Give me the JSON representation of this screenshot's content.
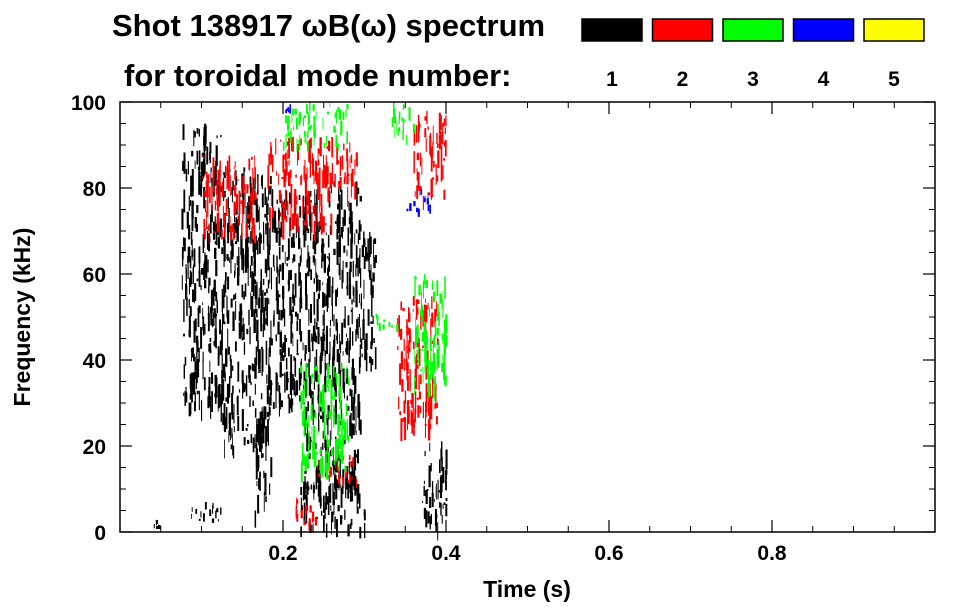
{
  "chart_data": {
    "type": "heatmap",
    "title_line1": "Shot 138917 ωB(ω) spectrum",
    "title_line2": "for toroidal mode number:",
    "xlabel": "Time (s)",
    "ylabel": "Frequency (kHz)",
    "xlim": [
      0.0,
      1.0
    ],
    "ylim": [
      0,
      100
    ],
    "xticks": [
      {
        "value": 0.2,
        "label": "0.2"
      },
      {
        "value": 0.4,
        "label": "0.4"
      },
      {
        "value": 0.6,
        "label": "0.6"
      },
      {
        "value": 0.8,
        "label": "0.8"
      }
    ],
    "yticks": [
      {
        "value": 0,
        "label": "0"
      },
      {
        "value": 20,
        "label": "20"
      },
      {
        "value": 40,
        "label": "40"
      },
      {
        "value": 60,
        "label": "60"
      },
      {
        "value": 80,
        "label": "80"
      },
      {
        "value": 100,
        "label": "100"
      }
    ],
    "legend": [
      {
        "label": "1",
        "color": "#000000"
      },
      {
        "label": "2",
        "color": "#ff0000"
      },
      {
        "label": "3",
        "color": "#00ff00"
      },
      {
        "label": "4",
        "color": "#0000ff"
      },
      {
        "label": "5",
        "color": "#ffff00"
      }
    ],
    "series": [
      {
        "mode": "1",
        "color": "#000000",
        "regions": [
          {
            "t": [
              0.075,
              0.125
            ],
            "f": [
              30,
              95
            ]
          },
          {
            "t": [
              0.125,
              0.185
            ],
            "f": [
              20,
              85
            ]
          },
          {
            "t": [
              0.165,
              0.185
            ],
            "f": [
              5,
              30
            ]
          },
          {
            "t": [
              0.185,
              0.225
            ],
            "f": [
              30,
              80
            ]
          },
          {
            "t": [
              0.225,
              0.295
            ],
            "f": [
              10,
              82
            ]
          },
          {
            "t": [
              0.295,
              0.315
            ],
            "f": [
              40,
              70
            ]
          },
          {
            "t": [
              0.22,
              0.3
            ],
            "f": [
              1,
              12
            ]
          },
          {
            "t": [
              0.37,
              0.4
            ],
            "f": [
              2,
              22
            ]
          },
          {
            "t": [
              0.085,
              0.125
            ],
            "f": [
              2,
              7
            ]
          },
          {
            "t": [
              0.04,
              0.05
            ],
            "f": [
              1,
              3
            ]
          }
        ]
      },
      {
        "mode": "2",
        "color": "#ff0000",
        "regions": [
          {
            "t": [
              0.1,
              0.17
            ],
            "f": [
              70,
              88
            ]
          },
          {
            "t": [
              0.18,
              0.26
            ],
            "f": [
              72,
              92
            ]
          },
          {
            "t": [
              0.26,
              0.29
            ],
            "f": [
              80,
              92
            ]
          },
          {
            "t": [
              0.34,
              0.39
            ],
            "f": [
              25,
              55
            ]
          },
          {
            "t": [
              0.36,
              0.4
            ],
            "f": [
              78,
              98
            ]
          },
          {
            "t": [
              0.24,
              0.29
            ],
            "f": [
              12,
              18
            ]
          },
          {
            "t": [
              0.21,
              0.24
            ],
            "f": [
              2,
              8
            ]
          }
        ]
      },
      {
        "mode": "3",
        "color": "#00ff00",
        "regions": [
          {
            "t": [
              0.2,
              0.28
            ],
            "f": [
              90,
              100
            ]
          },
          {
            "t": [
              0.31,
              0.34
            ],
            "f": [
              48,
              52
            ]
          },
          {
            "t": [
              0.36,
              0.4
            ],
            "f": [
              35,
              60
            ]
          },
          {
            "t": [
              0.22,
              0.28
            ],
            "f": [
              15,
              40
            ]
          },
          {
            "t": [
              0.33,
              0.36
            ],
            "f": [
              92,
              100
            ]
          }
        ]
      },
      {
        "mode": "4",
        "color": "#0000ff",
        "regions": [
          {
            "t": [
              0.35,
              0.38
            ],
            "f": [
              75,
              80
            ]
          },
          {
            "t": [
              0.2,
              0.21
            ],
            "f": [
              98,
              100
            ]
          }
        ]
      }
    ]
  }
}
